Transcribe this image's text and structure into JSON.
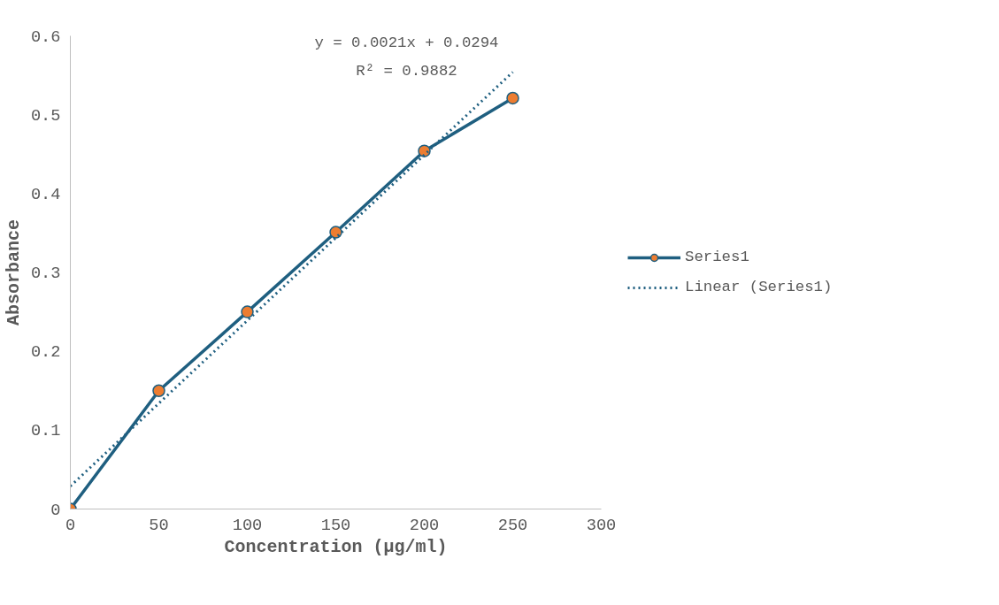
{
  "chart_data": {
    "type": "line",
    "xlabel": "Concentration (µg/ml)",
    "ylabel": "Absorbance",
    "xlim": [
      0,
      300
    ],
    "xticks": [
      0,
      50,
      100,
      150,
      200,
      250,
      300
    ],
    "ylim": [
      0,
      0.6
    ],
    "yticks": [
      0,
      0.1,
      0.2,
      0.3,
      0.4,
      0.5,
      0.6
    ],
    "grid": false,
    "legend": "right",
    "marker": "circle",
    "line_style": "solid",
    "annotations": [
      "y = 0.0021x + 0.0294",
      "R² = 0.9882"
    ],
    "series": [
      {
        "name": "Series1",
        "color": "#1f5f80",
        "x": [
          0,
          50,
          100,
          150,
          200,
          250
        ],
        "values": [
          0,
          0.15,
          0.25,
          0.351,
          0.454,
          0.521
        ]
      },
      {
        "name": "Linear (Series1)",
        "type": "line",
        "color": "#1f5f80",
        "marker": "none",
        "line_style": "dotted",
        "x": [
          0,
          250
        ],
        "values": [
          0.029,
          0.554
        ]
      }
    ]
  }
}
